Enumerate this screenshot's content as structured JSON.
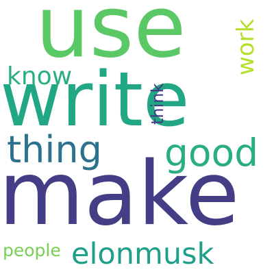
{
  "word_cloud": {
    "words": [
      {
        "text": "use",
        "color": "#5ac864"
      },
      {
        "text": "write",
        "color": "#22a784"
      },
      {
        "text": "make",
        "color": "#433e85"
      },
      {
        "text": "thing",
        "color": "#2c728e"
      },
      {
        "text": "good",
        "color": "#28ae80"
      },
      {
        "text": "elonmusk",
        "color": "#1f9e89"
      },
      {
        "text": "know",
        "color": "#29af7f"
      },
      {
        "text": "work",
        "color": "#b5de2b"
      },
      {
        "text": "think",
        "color": "#443a83"
      },
      {
        "text": "people",
        "color": "#75d054"
      }
    ]
  }
}
